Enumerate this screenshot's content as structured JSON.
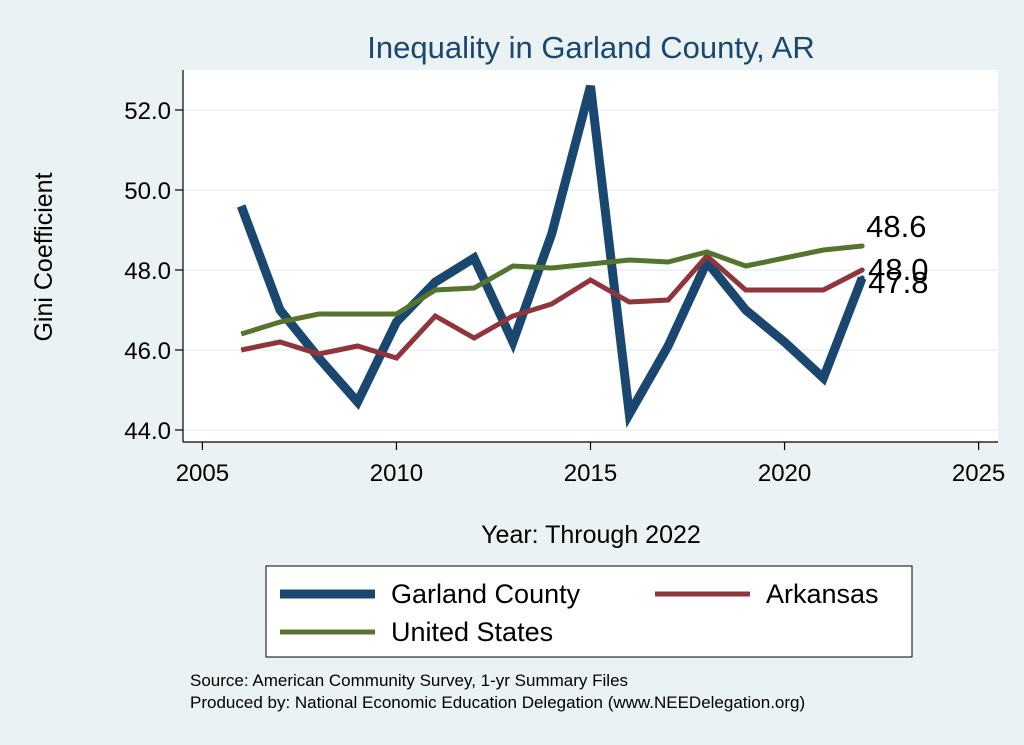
{
  "chart_data": {
    "type": "line",
    "title": "Inequality in Garland County, AR",
    "xlabel": "Year: Through 2022",
    "ylabel": "Gini Coefficient",
    "xlim": [
      2004.5,
      2025.5
    ],
    "ylim": [
      43.7,
      53
    ],
    "x_ticks": [
      2005,
      2010,
      2015,
      2020,
      2025
    ],
    "x_tick_labels": [
      "2005",
      "2010",
      "2015",
      "2020",
      "2025"
    ],
    "y_ticks": [
      44,
      46,
      48,
      50,
      52
    ],
    "y_tick_labels": [
      "44.0",
      "46.0",
      "48.0",
      "50.0",
      "52.0"
    ],
    "grid": true,
    "legend_position": "bottom",
    "x": [
      2006,
      2007,
      2008,
      2009,
      2010,
      2011,
      2012,
      2013,
      2014,
      2015,
      2016,
      2017,
      2018,
      2019,
      2020,
      2021,
      2022
    ],
    "series": [
      {
        "name": "Garland County",
        "color": "#1a476f",
        "values": [
          49.6,
          47.0,
          45.8,
          44.7,
          46.7,
          47.7,
          48.3,
          46.2,
          48.9,
          52.6,
          44.4,
          46.1,
          48.2,
          47.0,
          46.2,
          45.3,
          47.8
        ],
        "end_label": "47.8"
      },
      {
        "name": "Arkansas",
        "color": "#90353b",
        "values": [
          46.0,
          46.2,
          45.9,
          46.1,
          45.8,
          46.85,
          46.3,
          46.85,
          47.15,
          47.75,
          47.2,
          47.25,
          48.35,
          47.5,
          47.5,
          47.5,
          48.0
        ],
        "end_label": "48.0"
      },
      {
        "name": "United States",
        "color": "#55752f",
        "values": [
          46.4,
          46.7,
          46.9,
          46.9,
          46.9,
          47.5,
          47.55,
          48.1,
          48.05,
          48.15,
          48.25,
          48.2,
          48.45,
          48.1,
          48.3,
          48.5,
          48.6
        ],
        "end_label": "48.6"
      }
    ],
    "notes": [
      "Source: American Community Survey, 1-yr Summary Files",
      "Produced by: National Economic Education Delegation (www.NEEDelegation.org)"
    ]
  }
}
